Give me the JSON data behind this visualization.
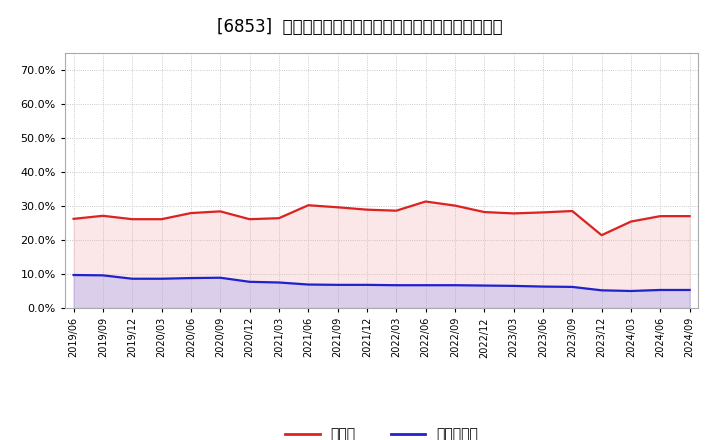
{
  "title": "[6853]  現預金、有利子負債の総資産に対する比率の推移",
  "x_labels": [
    "2019/06",
    "2019/09",
    "2019/12",
    "2020/03",
    "2020/06",
    "2020/09",
    "2020/12",
    "2021/03",
    "2021/06",
    "2021/09",
    "2021/12",
    "2022/03",
    "2022/06",
    "2022/09",
    "2022/12",
    "2023/03",
    "2023/06",
    "2023/09",
    "2023/12",
    "2024/03",
    "2024/06",
    "2024/09"
  ],
  "cash_values": [
    0.262,
    0.271,
    0.261,
    0.261,
    0.279,
    0.284,
    0.261,
    0.264,
    0.302,
    0.296,
    0.289,
    0.286,
    0.313,
    0.301,
    0.282,
    0.278,
    0.281,
    0.285,
    0.214,
    0.254,
    0.27,
    0.27
  ],
  "debt_values": [
    0.097,
    0.096,
    0.086,
    0.086,
    0.088,
    0.089,
    0.077,
    0.075,
    0.069,
    0.068,
    0.068,
    0.067,
    0.067,
    0.067,
    0.066,
    0.065,
    0.063,
    0.062,
    0.052,
    0.05,
    0.053,
    0.053
  ],
  "cash_color": "#dd2222",
  "debt_color": "#2222cc",
  "fill_cash_color": "#f0a0a0",
  "fill_debt_color": "#a0a0f0",
  "bg_color": "#ffffff",
  "plot_bg_color": "#ffffff",
  "grid_color": "#bbbbbb",
  "ylim": [
    0.0,
    0.75
  ],
  "yticks": [
    0.0,
    0.1,
    0.2,
    0.3,
    0.4,
    0.5,
    0.6,
    0.7
  ],
  "legend_cash": "現預金",
  "legend_debt": "有利子負債",
  "title_fontsize": 12
}
